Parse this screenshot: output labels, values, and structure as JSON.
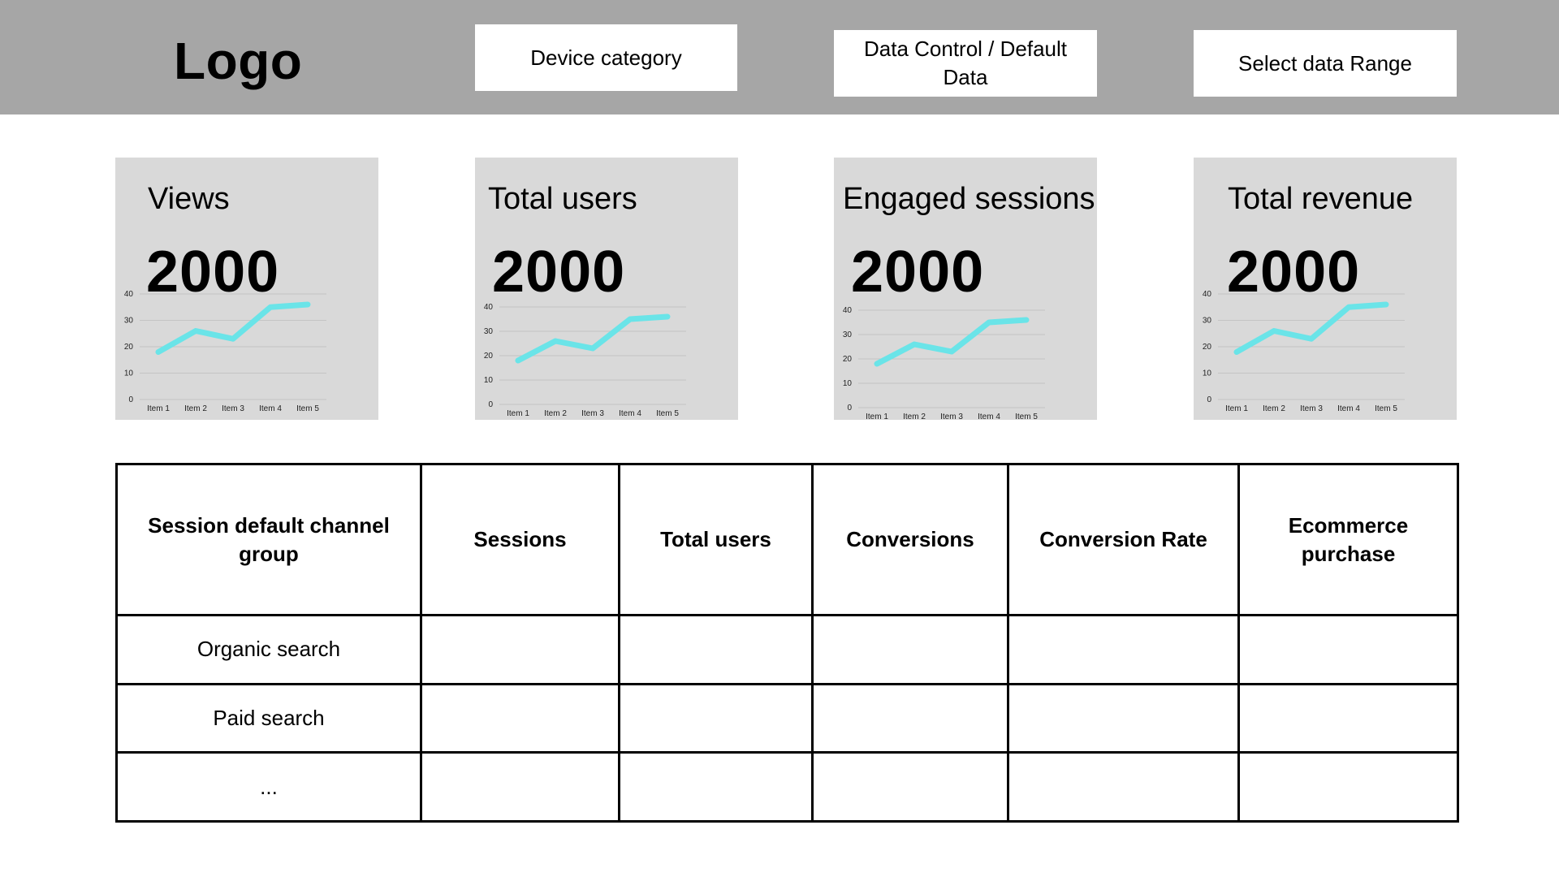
{
  "header": {
    "logo": "Logo",
    "device_category": "Device category",
    "data_control": "Data Control / Default Data",
    "date_range": "Select data Range"
  },
  "cards": [
    {
      "title": "Views",
      "value": "2000"
    },
    {
      "title": "Total users",
      "value": "2000"
    },
    {
      "title": "Engaged sessions",
      "value": "2000"
    },
    {
      "title": "Total revenue",
      "value": "2000"
    }
  ],
  "chart_data": {
    "type": "line",
    "categories": [
      "Item 1",
      "Item 2",
      "Item 3",
      "Item 4",
      "Item 5"
    ],
    "values": [
      18,
      26,
      23,
      35,
      36
    ],
    "ylim": [
      0,
      40
    ],
    "yticks": [
      0,
      10,
      20,
      30,
      40
    ],
    "color": "#6ae4e8",
    "grid": true
  },
  "table": {
    "headers": [
      "Session default channel group",
      "Sessions",
      "Total users",
      "Conversions",
      "Conversion Rate",
      "Ecommerce purchase"
    ],
    "rows": [
      [
        "Organic search",
        "",
        "",
        "",
        "",
        ""
      ],
      [
        "Paid search",
        "",
        "",
        "",
        "",
        ""
      ],
      [
        "...",
        "",
        "",
        "",
        "",
        ""
      ]
    ]
  },
  "colors": {
    "header_bg": "#a6a6a6",
    "card_bg": "#d9d9d9",
    "line": "#6ae4e8"
  }
}
